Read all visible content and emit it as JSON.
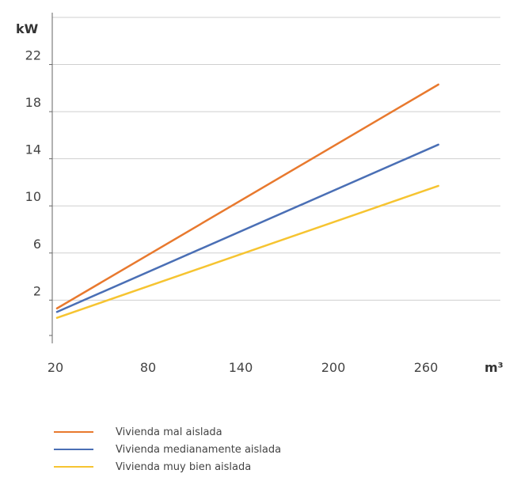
{
  "chart_data": {
    "type": "line",
    "xlabel": "m³",
    "ylabel": "kW",
    "x_ticks": [
      "20",
      "80",
      "140",
      "200",
      "260"
    ],
    "y_ticks": [
      "2",
      "6",
      "10",
      "14",
      "18",
      "22"
    ],
    "xlim": [
      20,
      330
    ],
    "ylim": [
      -1,
      26
    ],
    "grid": "horizontal",
    "legend_position": "bottom-left",
    "series": [
      {
        "name": "Vivienda mal aislada",
        "color": "#E8792E",
        "x": [
          20,
          267
        ],
        "y": [
          1.3,
          20.3
        ]
      },
      {
        "name": "Vivienda medianamente aislada",
        "color": "#4A6FB5",
        "x": [
          20,
          267
        ],
        "y": [
          1.0,
          15.2
        ]
      },
      {
        "name": "Vivienda muy bien aislada",
        "color": "#F6C431",
        "x": [
          20,
          267
        ],
        "y": [
          0.5,
          11.7
        ]
      }
    ]
  }
}
